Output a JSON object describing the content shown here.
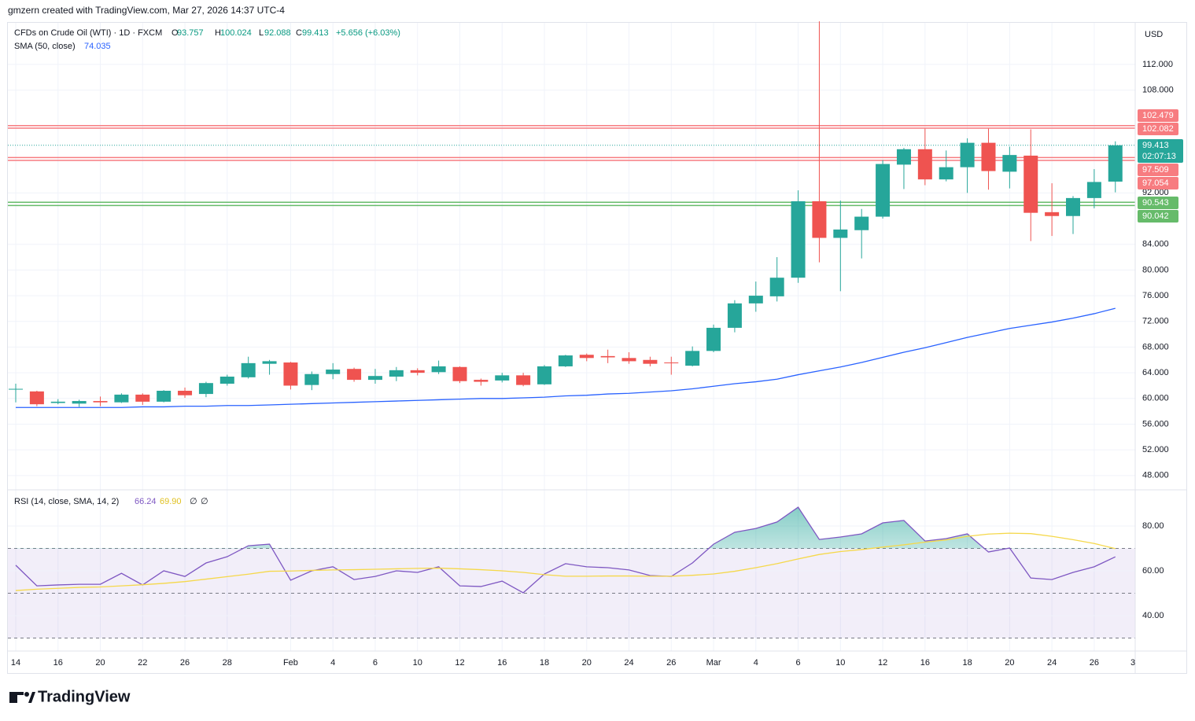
{
  "header": "gmzern created with TradingView.com, Mar 27, 2026 14:37 UTC-4",
  "brand": "TradingView",
  "chart_data": [
    {
      "type": "candlestick",
      "symbol": "CFDs on Crude Oil (WTI) · 1D · FXCM",
      "ohlc_prefixes": [
        "O",
        "H",
        "L",
        "C"
      ],
      "change": "+5.656 (+6.03%)",
      "currency": "USD",
      "categories": [
        "14",
        null,
        "16",
        null,
        "20",
        null,
        "22",
        null,
        "26",
        null,
        "28",
        null,
        null,
        "Feb",
        null,
        "4",
        null,
        "6",
        null,
        "10",
        null,
        "12",
        null,
        "16",
        null,
        "18",
        null,
        "20",
        null,
        "24",
        null,
        "26",
        null,
        "Mar",
        null,
        "4",
        null,
        "6",
        null,
        "10",
        null,
        "12",
        null,
        "16",
        null,
        "18",
        null,
        "20",
        null,
        "24",
        null,
        "26",
        null
      ],
      "x_edge_label": "3",
      "open": [
        61.4,
        61.1,
        59.3,
        59.2,
        59.6,
        59.4,
        60.6,
        59.5,
        61.2,
        60.7,
        62.3,
        63.3,
        65.4,
        65.6,
        62.1,
        63.8,
        64.6,
        62.9,
        63.4,
        64.4,
        64.1,
        64.9,
        62.9,
        62.8,
        63.6,
        62.2,
        65.0,
        66.8,
        66.6,
        66.3,
        66.0,
        65.6,
        65.1,
        67.4,
        71.0,
        74.8,
        75.9,
        78.8,
        90.7,
        85.0,
        86.2,
        88.3,
        96.4,
        98.8,
        94.1,
        96.0,
        99.8,
        95.3,
        97.8,
        89.0,
        88.4,
        91.2,
        93.757
      ],
      "high": [
        62.3,
        61.2,
        59.9,
        59.8,
        60.3,
        60.8,
        60.8,
        61.3,
        61.7,
        62.6,
        63.7,
        66.5,
        66.0,
        65.7,
        64.2,
        65.5,
        64.8,
        64.6,
        64.9,
        64.7,
        65.9,
        65.0,
        63.1,
        64.0,
        64.0,
        65.2,
        66.8,
        67.0,
        67.6,
        67.2,
        66.5,
        66.5,
        68.1,
        71.5,
        75.3,
        78.2,
        82.0,
        92.4,
        118.7,
        90.8,
        89.5,
        97.1,
        99.0,
        102.0,
        98.6,
        100.5,
        102.0,
        99.2,
        101.9,
        93.5,
        91.5,
        95.7,
        100.024
      ],
      "low": [
        59.4,
        58.8,
        59.1,
        58.7,
        58.8,
        59.3,
        59.0,
        59.4,
        60.1,
        60.2,
        62.0,
        63.1,
        63.7,
        61.4,
        61.3,
        63.0,
        62.6,
        62.3,
        62.7,
        63.6,
        63.8,
        62.4,
        62.0,
        62.5,
        61.9,
        62.1,
        64.9,
        65.8,
        65.5,
        65.4,
        65.0,
        63.7,
        65.0,
        67.2,
        70.3,
        73.5,
        75.1,
        78.0,
        81.2,
        76.7,
        81.8,
        88.0,
        92.6,
        93.2,
        93.8,
        92.0,
        92.5,
        92.7,
        84.5,
        85.3,
        85.6,
        89.6,
        92.088
      ],
      "close": [
        61.5,
        59.1,
        59.5,
        59.6,
        59.4,
        60.6,
        59.5,
        61.2,
        60.5,
        62.4,
        63.4,
        65.5,
        65.8,
        62.0,
        63.8,
        64.5,
        62.9,
        63.5,
        64.4,
        64.0,
        65.0,
        62.7,
        62.6,
        63.6,
        62.1,
        65.0,
        66.7,
        66.3,
        66.4,
        65.8,
        65.4,
        65.5,
        67.4,
        71.0,
        74.8,
        76.0,
        78.8,
        90.7,
        85.0,
        86.3,
        88.3,
        96.5,
        98.8,
        94.1,
        96.0,
        99.8,
        95.4,
        97.9,
        88.9,
        88.4,
        91.2,
        93.7,
        99.413
      ],
      "up_color": "#26a69a",
      "down_color": "#ef5350",
      "sma": {
        "label": "SMA (50, close)",
        "color": "#2962ff",
        "values": [
          58.6,
          58.6,
          58.6,
          58.6,
          58.6,
          58.6,
          58.7,
          58.7,
          58.8,
          58.8,
          58.9,
          58.9,
          59.0,
          59.1,
          59.2,
          59.3,
          59.4,
          59.5,
          59.6,
          59.7,
          59.8,
          59.9,
          60.0,
          60.0,
          60.1,
          60.2,
          60.4,
          60.5,
          60.7,
          60.8,
          61.0,
          61.2,
          61.5,
          61.9,
          62.3,
          62.6,
          63.0,
          63.7,
          64.3,
          64.9,
          65.6,
          66.4,
          67.2,
          67.9,
          68.7,
          69.5,
          70.2,
          70.9,
          71.4,
          71.9,
          72.5,
          73.2,
          74.035
        ]
      },
      "hlines": [
        {
          "value": 102.479,
          "color": "#f77c80"
        },
        {
          "value": 102.082,
          "color": "#f77c80"
        },
        {
          "value": 97.509,
          "color": "#f77c80"
        },
        {
          "value": 97.054,
          "color": "#f77c80"
        },
        {
          "value": 90.543,
          "color": "#66bb6a"
        },
        {
          "value": 90.042,
          "color": "#66bb6a"
        }
      ],
      "countdown": "02:07:13",
      "ylim": [
        45.9,
        118.6
      ],
      "yticks": [
        {
          "value": 112,
          "label": "112.000"
        },
        {
          "value": 108,
          "label": "108.000"
        },
        {
          "value": 92,
          "label": "92.000"
        },
        {
          "value": 84,
          "label": "84.000"
        },
        {
          "value": 80,
          "label": "80.000"
        },
        {
          "value": 76,
          "label": "76.000"
        },
        {
          "value": 72,
          "label": "72.000"
        },
        {
          "value": 68,
          "label": "68.000"
        },
        {
          "value": 64,
          "label": "64.000"
        },
        {
          "value": 60,
          "label": "60.000"
        },
        {
          "value": 56,
          "label": "56.000"
        },
        {
          "value": 52,
          "label": "52.000"
        },
        {
          "value": 48,
          "label": "48.000"
        }
      ],
      "grid": true
    },
    {
      "type": "line",
      "title": "RSI (14, close, SMA, 14, 2)",
      "legend_values": [
        "66.24",
        "69.90",
        "∅",
        "∅"
      ],
      "series": [
        {
          "color": "#7e57c2",
          "values": [
            62.5,
            53.3,
            53.7,
            54.0,
            54.0,
            58.9,
            53.7,
            60.0,
            57.5,
            63.5,
            66.3,
            71.2,
            71.9,
            55.8,
            60.0,
            61.8,
            56.1,
            57.5,
            60.0,
            59.3,
            61.8,
            53.3,
            53.0,
            55.4,
            50.2,
            58.6,
            63.2,
            61.8,
            61.4,
            60.4,
            57.9,
            57.5,
            63.5,
            71.9,
            77.2,
            78.9,
            81.8,
            88.4,
            74.0,
            75.1,
            76.5,
            81.4,
            82.5,
            73.3,
            74.4,
            76.5,
            68.4,
            70.2,
            56.8,
            56.1,
            59.3,
            61.8,
            66.24
          ]
        },
        {
          "color": "#f5d84a",
          "values": [
            51.2,
            51.8,
            52.2,
            52.6,
            52.8,
            53.3,
            53.8,
            54.4,
            55.2,
            56.3,
            57.4,
            58.5,
            59.8,
            59.9,
            60.2,
            60.4,
            60.5,
            60.7,
            60.9,
            61.1,
            61.2,
            60.9,
            60.5,
            60.0,
            59.3,
            58.3,
            57.6,
            57.6,
            57.7,
            57.7,
            57.6,
            57.6,
            58.0,
            58.6,
            59.8,
            61.4,
            63.2,
            65.3,
            67.3,
            68.6,
            69.5,
            70.6,
            71.6,
            72.8,
            73.8,
            75.4,
            76.4,
            76.8,
            76.6,
            75.4,
            73.9,
            72.2,
            69.9
          ]
        }
      ],
      "bands": [
        70,
        50,
        30
      ],
      "ylim": [
        24.2,
        95.8
      ],
      "yticks": [
        {
          "value": 80,
          "label": "80.00"
        },
        {
          "value": 60,
          "label": "60.00"
        },
        {
          "value": 40,
          "label": "40.00"
        }
      ],
      "grid": true
    }
  ]
}
